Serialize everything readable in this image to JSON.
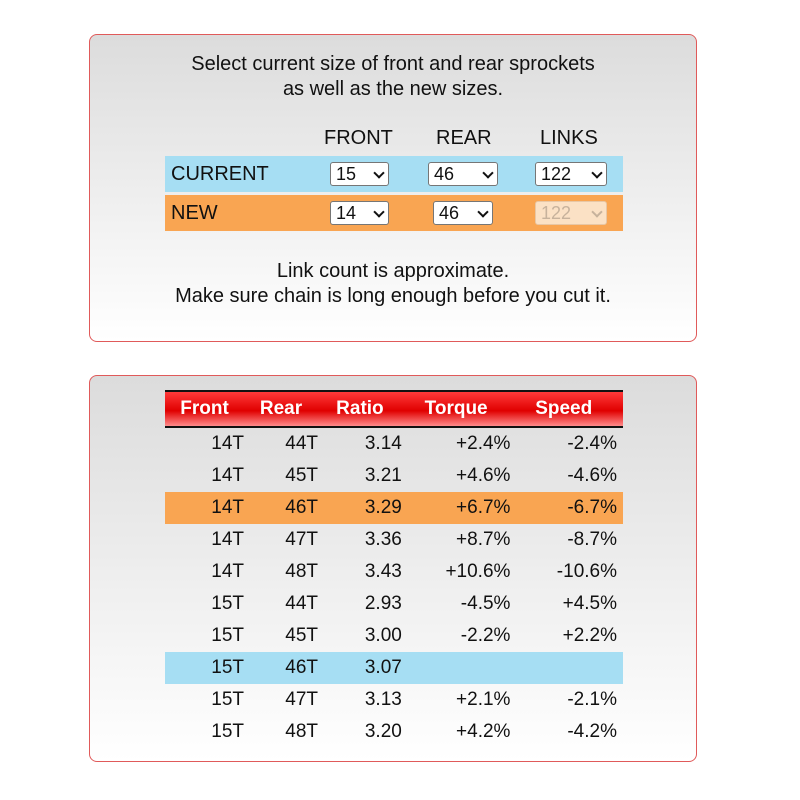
{
  "top_panel": {
    "instructions_line1": "Select current size of front and rear sprockets",
    "instructions_line2": "as well as the new sizes.",
    "headers": {
      "front": "FRONT",
      "rear": "REAR",
      "links": "LINKS"
    },
    "current": {
      "label": "CURRENT",
      "front": "15",
      "rear": "46",
      "links": "122"
    },
    "new": {
      "label": "NEW",
      "front": "14",
      "rear": "46",
      "links": "122"
    },
    "note_line1": "Link count is approximate.",
    "note_line2": "Make sure chain is long enough before you cut it."
  },
  "ratio_table": {
    "headers": {
      "front": "Front",
      "rear": "Rear",
      "ratio": "Ratio",
      "torque": "Torque",
      "speed": "Speed"
    },
    "rows": [
      {
        "front": "14T",
        "rear": "44T",
        "ratio": "3.14",
        "torque": "+2.4%",
        "speed": "-2.4%",
        "highlight": ""
      },
      {
        "front": "14T",
        "rear": "45T",
        "ratio": "3.21",
        "torque": "+4.6%",
        "speed": "-4.6%",
        "highlight": ""
      },
      {
        "front": "14T",
        "rear": "46T",
        "ratio": "3.29",
        "torque": "+6.7%",
        "speed": "-6.7%",
        "highlight": "new"
      },
      {
        "front": "14T",
        "rear": "47T",
        "ratio": "3.36",
        "torque": "+8.7%",
        "speed": "-8.7%",
        "highlight": ""
      },
      {
        "front": "14T",
        "rear": "48T",
        "ratio": "3.43",
        "torque": "+10.6%",
        "speed": "-10.6%",
        "highlight": ""
      },
      {
        "front": "15T",
        "rear": "44T",
        "ratio": "2.93",
        "torque": "-4.5%",
        "speed": "+4.5%",
        "highlight": ""
      },
      {
        "front": "15T",
        "rear": "45T",
        "ratio": "3.00",
        "torque": "-2.2%",
        "speed": "+2.2%",
        "highlight": ""
      },
      {
        "front": "15T",
        "rear": "46T",
        "ratio": "3.07",
        "torque": "",
        "speed": "",
        "highlight": "current"
      },
      {
        "front": "15T",
        "rear": "47T",
        "ratio": "3.13",
        "torque": "+2.1%",
        "speed": "-2.1%",
        "highlight": ""
      },
      {
        "front": "15T",
        "rear": "48T",
        "ratio": "3.20",
        "torque": "+4.2%",
        "speed": "-4.2%",
        "highlight": ""
      }
    ]
  },
  "colors": {
    "current_highlight": "#a6def3",
    "new_highlight": "#f9a552",
    "header_red": "#e00000",
    "panel_border": "#e05a5a"
  }
}
